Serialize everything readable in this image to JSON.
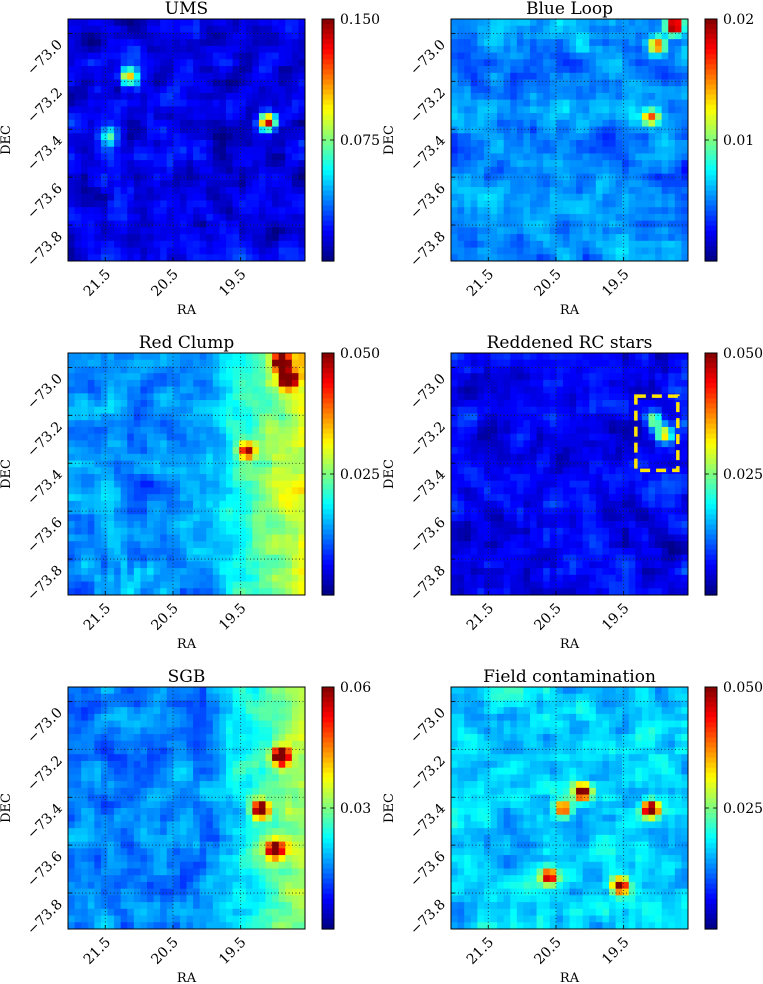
{
  "chart_data": [
    {
      "type": "heatmap",
      "title": "UMS",
      "xlabel": "RA",
      "ylabel": "DEC",
      "x_ticks": [
        "21.5",
        "20.5",
        "19.5"
      ],
      "y_ticks": [
        "−73.0",
        "−73.2",
        "−73.4",
        "−73.6",
        "−73.8"
      ],
      "colorbar": {
        "max": 0.15,
        "ticks": [
          "0.150",
          "0.075"
        ],
        "colormap": "jet"
      },
      "grid": true,
      "base_level": 0.1,
      "hotspots": [
        {
          "ra": 21.15,
          "dec": -73.18,
          "value": 0.55
        },
        {
          "ra": 19.1,
          "dec": -73.37,
          "value": 0.85
        },
        {
          "ra": 21.45,
          "dec": -73.43,
          "value": 0.3
        }
      ]
    },
    {
      "type": "heatmap",
      "title": "Blue Loop",
      "xlabel": "RA",
      "ylabel": "DEC",
      "x_ticks": [
        "21.5",
        "20.5",
        "19.5"
      ],
      "y_ticks": [
        "−73.0",
        "−73.2",
        "−73.4",
        "−73.6",
        "−73.8"
      ],
      "colorbar": {
        "max": 0.02,
        "ticks": [
          "0.02",
          "0.01"
        ],
        "colormap": "jet"
      },
      "grid": true,
      "base_level": 0.26,
      "hotspots": [
        {
          "ra": 18.75,
          "dec": -72.97,
          "value": 0.95
        },
        {
          "ra": 19.0,
          "dec": -73.05,
          "value": 0.6
        },
        {
          "ra": 19.1,
          "dec": -73.35,
          "value": 0.55
        }
      ]
    },
    {
      "type": "heatmap",
      "title": "Red Clump",
      "xlabel": "RA",
      "ylabel": "DEC",
      "x_ticks": [
        "21.5",
        "20.5",
        "19.5"
      ],
      "y_ticks": [
        "−73.0",
        "−73.2",
        "−73.4",
        "−73.6",
        "−73.8"
      ],
      "colorbar": {
        "max": 0.05,
        "ticks": [
          "0.050",
          "0.025"
        ],
        "colormap": "jet"
      },
      "grid": true,
      "base_level": 0.27,
      "gradient_east": 0.35,
      "hotspots": [
        {
          "ra": 18.9,
          "dec": -72.98,
          "value": 0.95
        },
        {
          "ra": 18.8,
          "dec": -73.05,
          "value": 0.85
        },
        {
          "ra": 19.4,
          "dec": -73.35,
          "value": 0.6
        }
      ]
    },
    {
      "type": "heatmap",
      "title": "Reddened RC stars",
      "xlabel": "RA",
      "ylabel": "DEC",
      "x_ticks": [
        "21.5",
        "20.5",
        "19.5"
      ],
      "y_ticks": [
        "−73.0",
        "−73.2",
        "−73.4",
        "−73.6",
        "−73.8"
      ],
      "colorbar": {
        "max": 0.05,
        "ticks": [
          "0.050",
          "0.025"
        ],
        "colormap": "jet"
      },
      "grid": true,
      "base_level": 0.12,
      "hotspots": [
        {
          "ra": 18.9,
          "dec": -73.28,
          "value": 0.6
        },
        {
          "ra": 19.05,
          "dec": -73.22,
          "value": 0.45
        }
      ],
      "highlight_box": {
        "ra_min": 18.7,
        "ra_max": 19.32,
        "dec_min": -73.43,
        "dec_max": -73.12,
        "color": "#ffe600"
      }
    },
    {
      "type": "heatmap",
      "title": "SGB",
      "xlabel": "RA",
      "ylabel": "DEC",
      "x_ticks": [
        "21.5",
        "20.5",
        "19.5"
      ],
      "y_ticks": [
        "−73.0",
        "−73.2",
        "−73.4",
        "−73.6",
        "−73.8"
      ],
      "colorbar": {
        "max": 0.06,
        "ticks": [
          "0.06",
          "0.03"
        ],
        "colormap": "jet"
      },
      "grid": true,
      "base_level": 0.25,
      "gradient_east": 0.33,
      "hotspots": [
        {
          "ra": 18.9,
          "dec": -73.23,
          "value": 0.85
        },
        {
          "ra": 19.2,
          "dec": -73.45,
          "value": 0.8
        },
        {
          "ra": 19.0,
          "dec": -73.62,
          "value": 0.7
        }
      ]
    },
    {
      "type": "heatmap",
      "title": "Field contamination",
      "xlabel": "RA",
      "ylabel": "DEC",
      "x_ticks": [
        "21.5",
        "20.5",
        "19.5"
      ],
      "y_ticks": [
        "−73.0",
        "−73.2",
        "−73.4",
        "−73.6",
        "−73.8"
      ],
      "colorbar": {
        "max": 0.05,
        "ticks": [
          "0.050",
          "0.025"
        ],
        "colormap": "jet"
      },
      "grid": true,
      "base_level": 0.33,
      "hotspots": [
        {
          "ra": 19.1,
          "dec": -73.45,
          "value": 0.9
        },
        {
          "ra": 20.1,
          "dec": -73.38,
          "value": 0.75
        },
        {
          "ra": 19.55,
          "dec": -73.77,
          "value": 0.75
        },
        {
          "ra": 20.6,
          "dec": -73.73,
          "value": 0.7
        },
        {
          "ra": 20.4,
          "dec": -73.45,
          "value": 0.6
        }
      ]
    }
  ]
}
